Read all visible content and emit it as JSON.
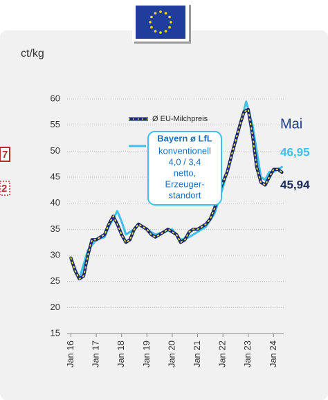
{
  "chart_data": {
    "type": "line",
    "y_axis_label": "ct/kg",
    "xlim": [
      2015.85,
      2024.4
    ],
    "xticks": [
      {
        "value": 2016,
        "label": "Jan 16"
      },
      {
        "value": 2017,
        "label": "Jan 17"
      },
      {
        "value": 2018,
        "label": "Jan 18"
      },
      {
        "value": 2019,
        "label": "Jan 19"
      },
      {
        "value": 2020,
        "label": "Jan 20"
      },
      {
        "value": 2021,
        "label": "Jan 21"
      },
      {
        "value": 2022,
        "label": "Jan 22"
      },
      {
        "value": 2023,
        "label": "Jan 23"
      },
      {
        "value": 2024,
        "label": "Jan 24"
      }
    ],
    "ylim": [
      15,
      60
    ],
    "yticks": [
      15,
      20,
      25,
      30,
      35,
      40,
      45,
      50,
      55,
      60
    ],
    "grid": true,
    "series": [
      {
        "name": "Ø EU-Milchpreis",
        "color": "#1a2a6c",
        "dot_color": "#e8d84a",
        "x": [
          2016.0,
          2016.17,
          2016.33,
          2016.5,
          2016.67,
          2016.83,
          2017.0,
          2017.17,
          2017.33,
          2017.5,
          2017.67,
          2017.83,
          2018.0,
          2018.17,
          2018.33,
          2018.5,
          2018.67,
          2018.83,
          2019.0,
          2019.17,
          2019.33,
          2019.5,
          2019.67,
          2019.83,
          2020.0,
          2020.17,
          2020.33,
          2020.5,
          2020.67,
          2020.83,
          2021.0,
          2021.17,
          2021.33,
          2021.5,
          2021.67,
          2021.83,
          2022.0,
          2022.17,
          2022.33,
          2022.5,
          2022.67,
          2022.83,
          2023.0,
          2023.17,
          2023.33,
          2023.5,
          2023.67,
          2023.83,
          2024.0,
          2024.17,
          2024.33
        ],
        "values": [
          29.5,
          27,
          25.5,
          26,
          30,
          33,
          33,
          33.5,
          34,
          36,
          37.5,
          36,
          34,
          32.5,
          33,
          35,
          36,
          35.5,
          35,
          34,
          33.5,
          34,
          34.5,
          35,
          34.5,
          34,
          32.5,
          33,
          34.5,
          35,
          35,
          35.5,
          36,
          37,
          39,
          42,
          44,
          46,
          49,
          52,
          55,
          57.5,
          58,
          53,
          47,
          44,
          43.5,
          45,
          46.5,
          46.5,
          45.94
        ],
        "end_label": "45,94"
      },
      {
        "name": "Bayern ø LfL",
        "color": "#3ec0ea",
        "x": [
          2016.0,
          2016.33,
          2016.67,
          2017.0,
          2017.33,
          2017.5,
          2017.83,
          2018.0,
          2018.17,
          2018.5,
          2018.67,
          2019.0,
          2019.33,
          2019.67,
          2020.0,
          2020.33,
          2020.67,
          2021.0,
          2021.33,
          2021.67,
          2022.0,
          2022.33,
          2022.67,
          2022.92,
          2023.17,
          2023.5,
          2023.67,
          2023.83,
          2024.0,
          2024.17,
          2024.33
        ],
        "values": [
          29.5,
          25.5,
          31,
          33,
          33.5,
          35.5,
          38.5,
          36.5,
          34,
          35,
          36,
          35,
          34,
          34.5,
          35,
          33,
          33.5,
          34.5,
          35.5,
          38,
          43,
          49,
          55,
          59.5,
          55,
          45,
          44.5,
          46,
          46,
          46.5,
          46.95
        ],
        "end_label": "46,95",
        "legend_note": [
          "konventionell",
          "4,0 / 3,4",
          "netto,",
          "Erzeuger-",
          "standort"
        ]
      }
    ],
    "end_month": "Mai",
    "side_fragments": [
      "7",
      "2"
    ]
  }
}
